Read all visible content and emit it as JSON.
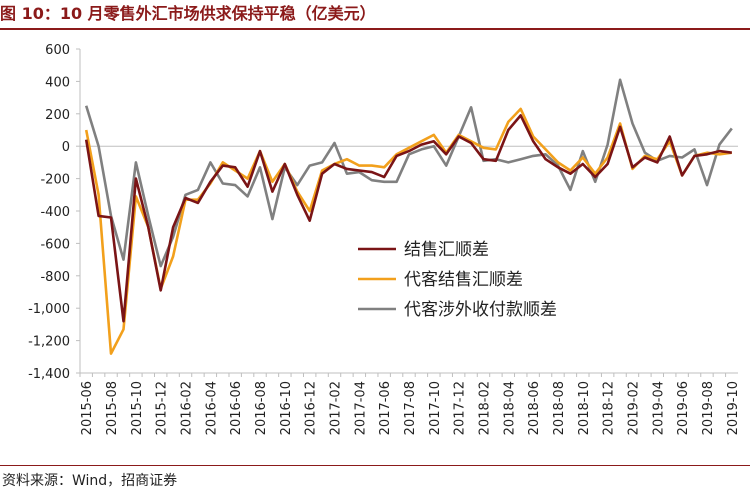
{
  "header": {
    "title": "图 10：10 月零售外汇市场供求保持平稳（亿美元）"
  },
  "footer": {
    "source": "资料来源：Wind，招商证券"
  },
  "chart_data": {
    "type": "line",
    "title": "图 10：10 月零售外汇市场供求保持平稳（亿美元）",
    "xlabel": "",
    "ylabel": "",
    "ylim": [
      -1400,
      600
    ],
    "yticks": [
      600,
      400,
      200,
      0,
      -200,
      -400,
      -600,
      -800,
      -1000,
      -1200,
      -1400
    ],
    "ytick_labels": [
      "600",
      "400",
      "200",
      "0",
      "-200",
      "-400",
      "-600",
      "-800",
      "-1,000",
      "-1,200",
      "-1,400"
    ],
    "grid": false,
    "legend_position": "center",
    "x": [
      "2015-06",
      "2015-07",
      "2015-08",
      "2015-09",
      "2015-10",
      "2015-11",
      "2015-12",
      "2016-01",
      "2016-02",
      "2016-03",
      "2016-04",
      "2016-05",
      "2016-06",
      "2016-07",
      "2016-08",
      "2016-09",
      "2016-10",
      "2016-11",
      "2016-12",
      "2017-01",
      "2017-02",
      "2017-03",
      "2017-04",
      "2017-05",
      "2017-06",
      "2017-07",
      "2017-08",
      "2017-09",
      "2017-10",
      "2017-11",
      "2017-12",
      "2018-01",
      "2018-02",
      "2018-03",
      "2018-04",
      "2018-05",
      "2018-06",
      "2018-07",
      "2018-08",
      "2018-09",
      "2018-10",
      "2018-11",
      "2018-12",
      "2019-01",
      "2019-02",
      "2019-03",
      "2019-04",
      "2019-05",
      "2019-06",
      "2019-07",
      "2019-08",
      "2019-09",
      "2019-10"
    ],
    "x_tick_labels": [
      "2015-06",
      "2015-08",
      "2015-10",
      "2015-12",
      "2016-02",
      "2016-04",
      "2016-06",
      "2016-08",
      "2016-10",
      "2016-12",
      "2017-02",
      "2017-04",
      "2017-06",
      "2017-08",
      "2017-10",
      "2017-12",
      "2018-02",
      "2018-04",
      "2018-06",
      "2018-08",
      "2018-10",
      "2018-12",
      "2019-02",
      "2019-04",
      "2019-06",
      "2019-08",
      "2019-10"
    ],
    "series": [
      {
        "name": "结售汇顺差",
        "color": "#7a1416",
        "values": [
          40,
          -430,
          -440,
          -1080,
          -200,
          -500,
          -890,
          -500,
          -320,
          -350,
          -220,
          -120,
          -130,
          -250,
          -30,
          -280,
          -110,
          -300,
          -460,
          -170,
          -110,
          -140,
          -150,
          -160,
          -190,
          -60,
          -30,
          10,
          30,
          -50,
          60,
          20,
          -80,
          -90,
          100,
          190,
          30,
          -80,
          -130,
          -170,
          -110,
          -190,
          -110,
          120,
          -130,
          -70,
          -100,
          60,
          -180,
          -60,
          -50,
          -30,
          -40
        ]
      },
      {
        "name": "代客结售汇顺差",
        "color": "#f2a01c",
        "values": [
          100,
          -300,
          -1280,
          -1130,
          -310,
          -500,
          -880,
          -680,
          -330,
          -330,
          -230,
          -100,
          -150,
          -200,
          -30,
          -220,
          -110,
          -280,
          -400,
          -150,
          -110,
          -80,
          -120,
          -120,
          -130,
          -50,
          -10,
          30,
          70,
          -40,
          70,
          30,
          -10,
          -20,
          150,
          230,
          60,
          -20,
          -100,
          -150,
          -70,
          -170,
          -70,
          140,
          -140,
          -60,
          -80,
          30,
          -180,
          -60,
          -40,
          -50,
          -40
        ]
      },
      {
        "name": "代客涉外收付款顺差",
        "color": "#808080",
        "values": [
          250,
          0,
          -430,
          -700,
          -100,
          -430,
          -740,
          -560,
          -300,
          -270,
          -100,
          -230,
          -240,
          -310,
          -130,
          -450,
          -130,
          -240,
          -120,
          -100,
          20,
          -170,
          -160,
          -210,
          -220,
          -220,
          -50,
          -20,
          0,
          -120,
          60,
          240,
          -90,
          -80,
          -100,
          -80,
          -60,
          -50,
          -120,
          -270,
          -30,
          -220,
          10,
          410,
          140,
          -40,
          -90,
          -60,
          -70,
          -20,
          -240,
          10,
          110
        ]
      }
    ]
  }
}
